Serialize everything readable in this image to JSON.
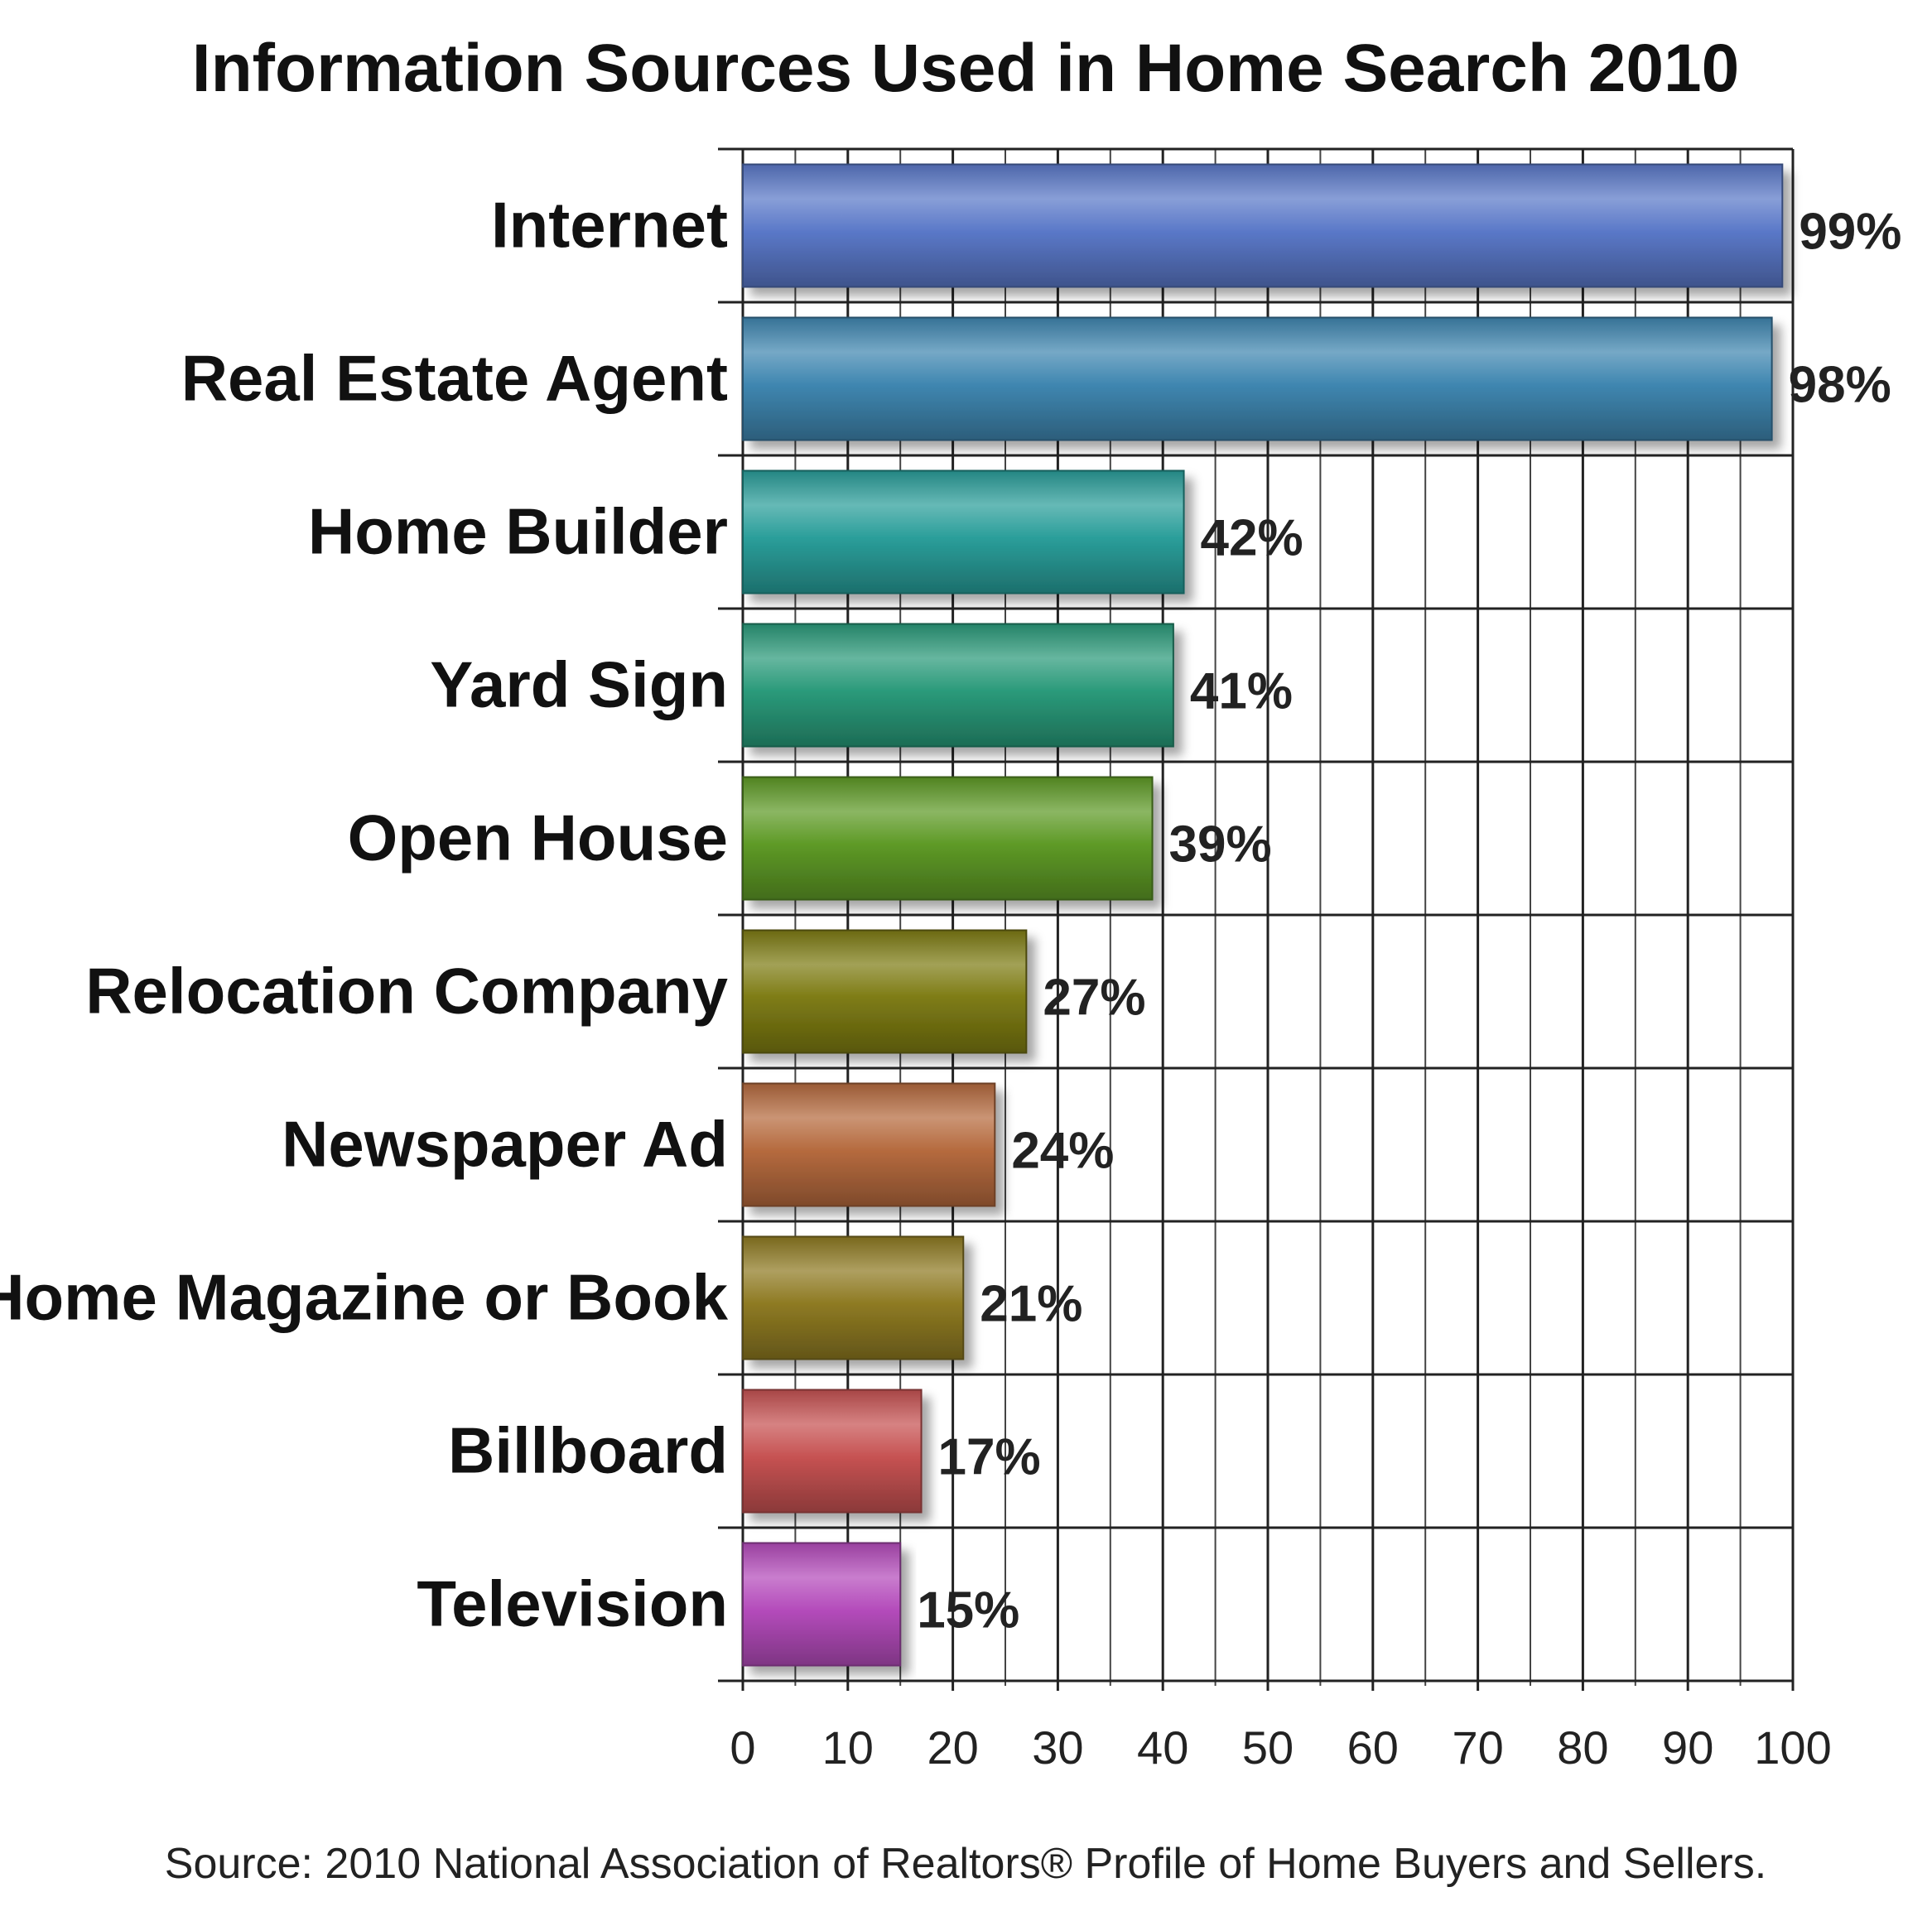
{
  "chart_data": {
    "type": "bar",
    "orientation": "horizontal",
    "title": "Information Sources Used in Home Search 2010",
    "categories": [
      "Internet",
      "Real Estate Agent",
      "Home Builder",
      "Yard Sign",
      "Open House",
      "Relocation Company",
      "Newspaper Ad",
      "Home Magazine or Book",
      "Billboard",
      "Television"
    ],
    "values": [
      99,
      98,
      42,
      41,
      39,
      27,
      24,
      21,
      17,
      15
    ],
    "value_labels": [
      "99%",
      "98%",
      "42%",
      "41%",
      "39%",
      "27%",
      "24%",
      "21%",
      "17%",
      "15%"
    ],
    "bar_colors": [
      "#5a78c8",
      "#3f86b0",
      "#2a9e9a",
      "#2a9a7a",
      "#5e9a26",
      "#7e7c14",
      "#b56a3e",
      "#8e7a22",
      "#c65252",
      "#b44bbb"
    ],
    "xlim": [
      0,
      100
    ],
    "x_ticks": [
      0,
      10,
      20,
      30,
      40,
      50,
      60,
      70,
      80,
      90,
      100
    ],
    "x_tick_labels": [
      "0",
      "10",
      "20",
      "30",
      "40",
      "50",
      "60",
      "70",
      "80",
      "90",
      "100"
    ],
    "grid": true,
    "legend": "none",
    "source": "Source: 2010 National Association of Realtors® Profile of Home Buyers and Sellers."
  }
}
